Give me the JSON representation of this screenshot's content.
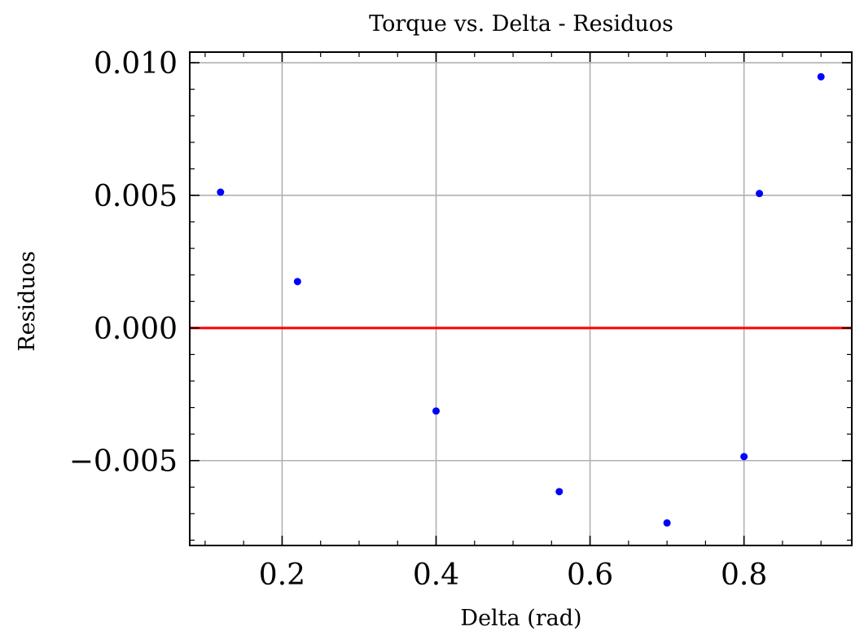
{
  "chart_data": {
    "type": "scatter",
    "title": "Torque vs. Delta - Residuos",
    "xlabel": "Delta (rad)",
    "ylabel": "Residuos",
    "xlim": [
      0.08,
      0.94
    ],
    "ylim": [
      -0.0082,
      0.0104
    ],
    "xticks": [
      {
        "value": 0.2,
        "label": "0.2"
      },
      {
        "value": 0.4,
        "label": "0.4"
      },
      {
        "value": 0.6,
        "label": "0.6"
      },
      {
        "value": 0.8,
        "label": "0.8"
      }
    ],
    "yticks": [
      {
        "value": 0.01,
        "label": "0.010"
      },
      {
        "value": 0.005,
        "label": "0.005"
      },
      {
        "value": 0.0,
        "label": "0.000"
      },
      {
        "value": -0.005,
        "label": "−0.005"
      }
    ],
    "grid": true,
    "series": [
      {
        "x": [
          0.12,
          0.22,
          0.4,
          0.56,
          0.7,
          0.8,
          0.82,
          0.9
        ],
        "y": [
          0.00512,
          0.00175,
          -0.00313,
          -0.00617,
          -0.00735,
          -0.00485,
          0.00507,
          0.00947
        ],
        "color": "#0000ff"
      }
    ],
    "reference_line": {
      "y": 0.0,
      "color": "#ff0000"
    }
  }
}
